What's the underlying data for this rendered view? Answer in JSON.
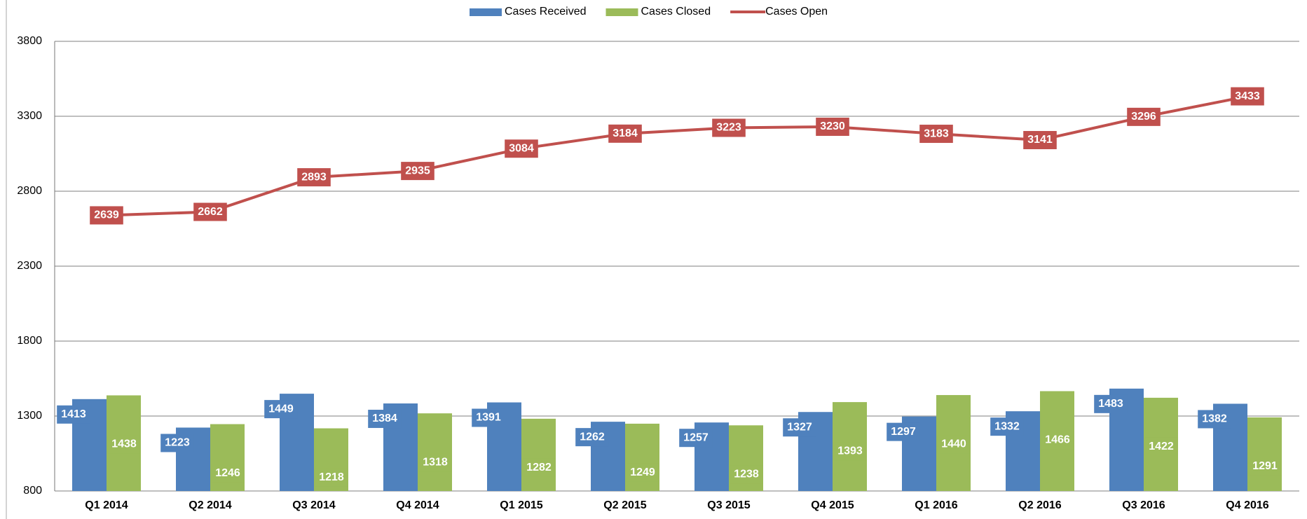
{
  "chart_data": {
    "type": "bar-line",
    "categories": [
      "Q1 2014",
      "Q2 2014",
      "Q3 2014",
      "Q4 2014",
      "Q1 2015",
      "Q2 2015",
      "Q3 2015",
      "Q4 2015",
      "Q1 2016",
      "Q2 2016",
      "Q3 2016",
      "Q4 2016"
    ],
    "series": [
      {
        "name": "Cases Received",
        "type": "bar",
        "color": "#4f81bd",
        "values": [
          1413,
          1223,
          1449,
          1384,
          1391,
          1262,
          1257,
          1327,
          1297,
          1332,
          1483,
          1382
        ]
      },
      {
        "name": "Cases Closed",
        "type": "bar",
        "color": "#9bbb59",
        "values": [
          1438,
          1246,
          1218,
          1318,
          1282,
          1249,
          1238,
          1393,
          1440,
          1466,
          1422,
          1291
        ]
      },
      {
        "name": "Cases Open",
        "type": "line",
        "color": "#c0504d",
        "values": [
          2639,
          2662,
          2893,
          2935,
          3084,
          3184,
          3223,
          3230,
          3183,
          3141,
          3296,
          3433
        ]
      }
    ],
    "ylim": [
      800,
      3800
    ],
    "yticks": [
      800,
      1300,
      1800,
      2300,
      2800,
      3300,
      3800
    ],
    "grid": true,
    "legend": "top"
  }
}
